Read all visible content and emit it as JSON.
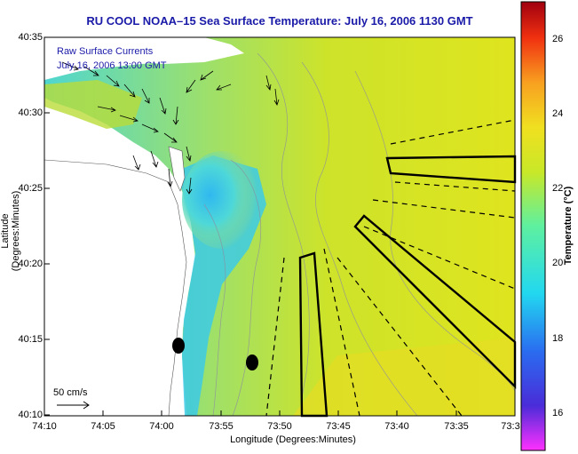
{
  "title": "RU COOL  NOAA–15  Sea Surface Temperature:  July 16, 2006 1130 GMT",
  "legend": {
    "line1": "Raw Surface Currents",
    "line2": "July 16, 2006 13:00 GMT"
  },
  "axes": {
    "xlabel": "Longitude (Degrees:Minutes)",
    "ylabel": "Latitude (Degrees:Minutes)",
    "xticks": [
      "74:10",
      "74:05",
      "74:00",
      "73:55",
      "73:50",
      "73:45",
      "73:40",
      "73:35",
      "73:3"
    ],
    "yticks": [
      "40:35",
      "40:30",
      "40:25",
      "40:20",
      "40:15",
      "40:10"
    ]
  },
  "colorbar": {
    "label": "Temperature (°C)",
    "ticks": [
      "26",
      "24",
      "22",
      "20",
      "18",
      "16"
    ],
    "range": [
      15,
      27
    ]
  },
  "scale_label": "50 cm/s",
  "colors": {
    "title": "#1a1aa8",
    "land": "#ffffff",
    "water_warm": "#d8e21c",
    "water_cool": "#2ec6e8"
  }
}
